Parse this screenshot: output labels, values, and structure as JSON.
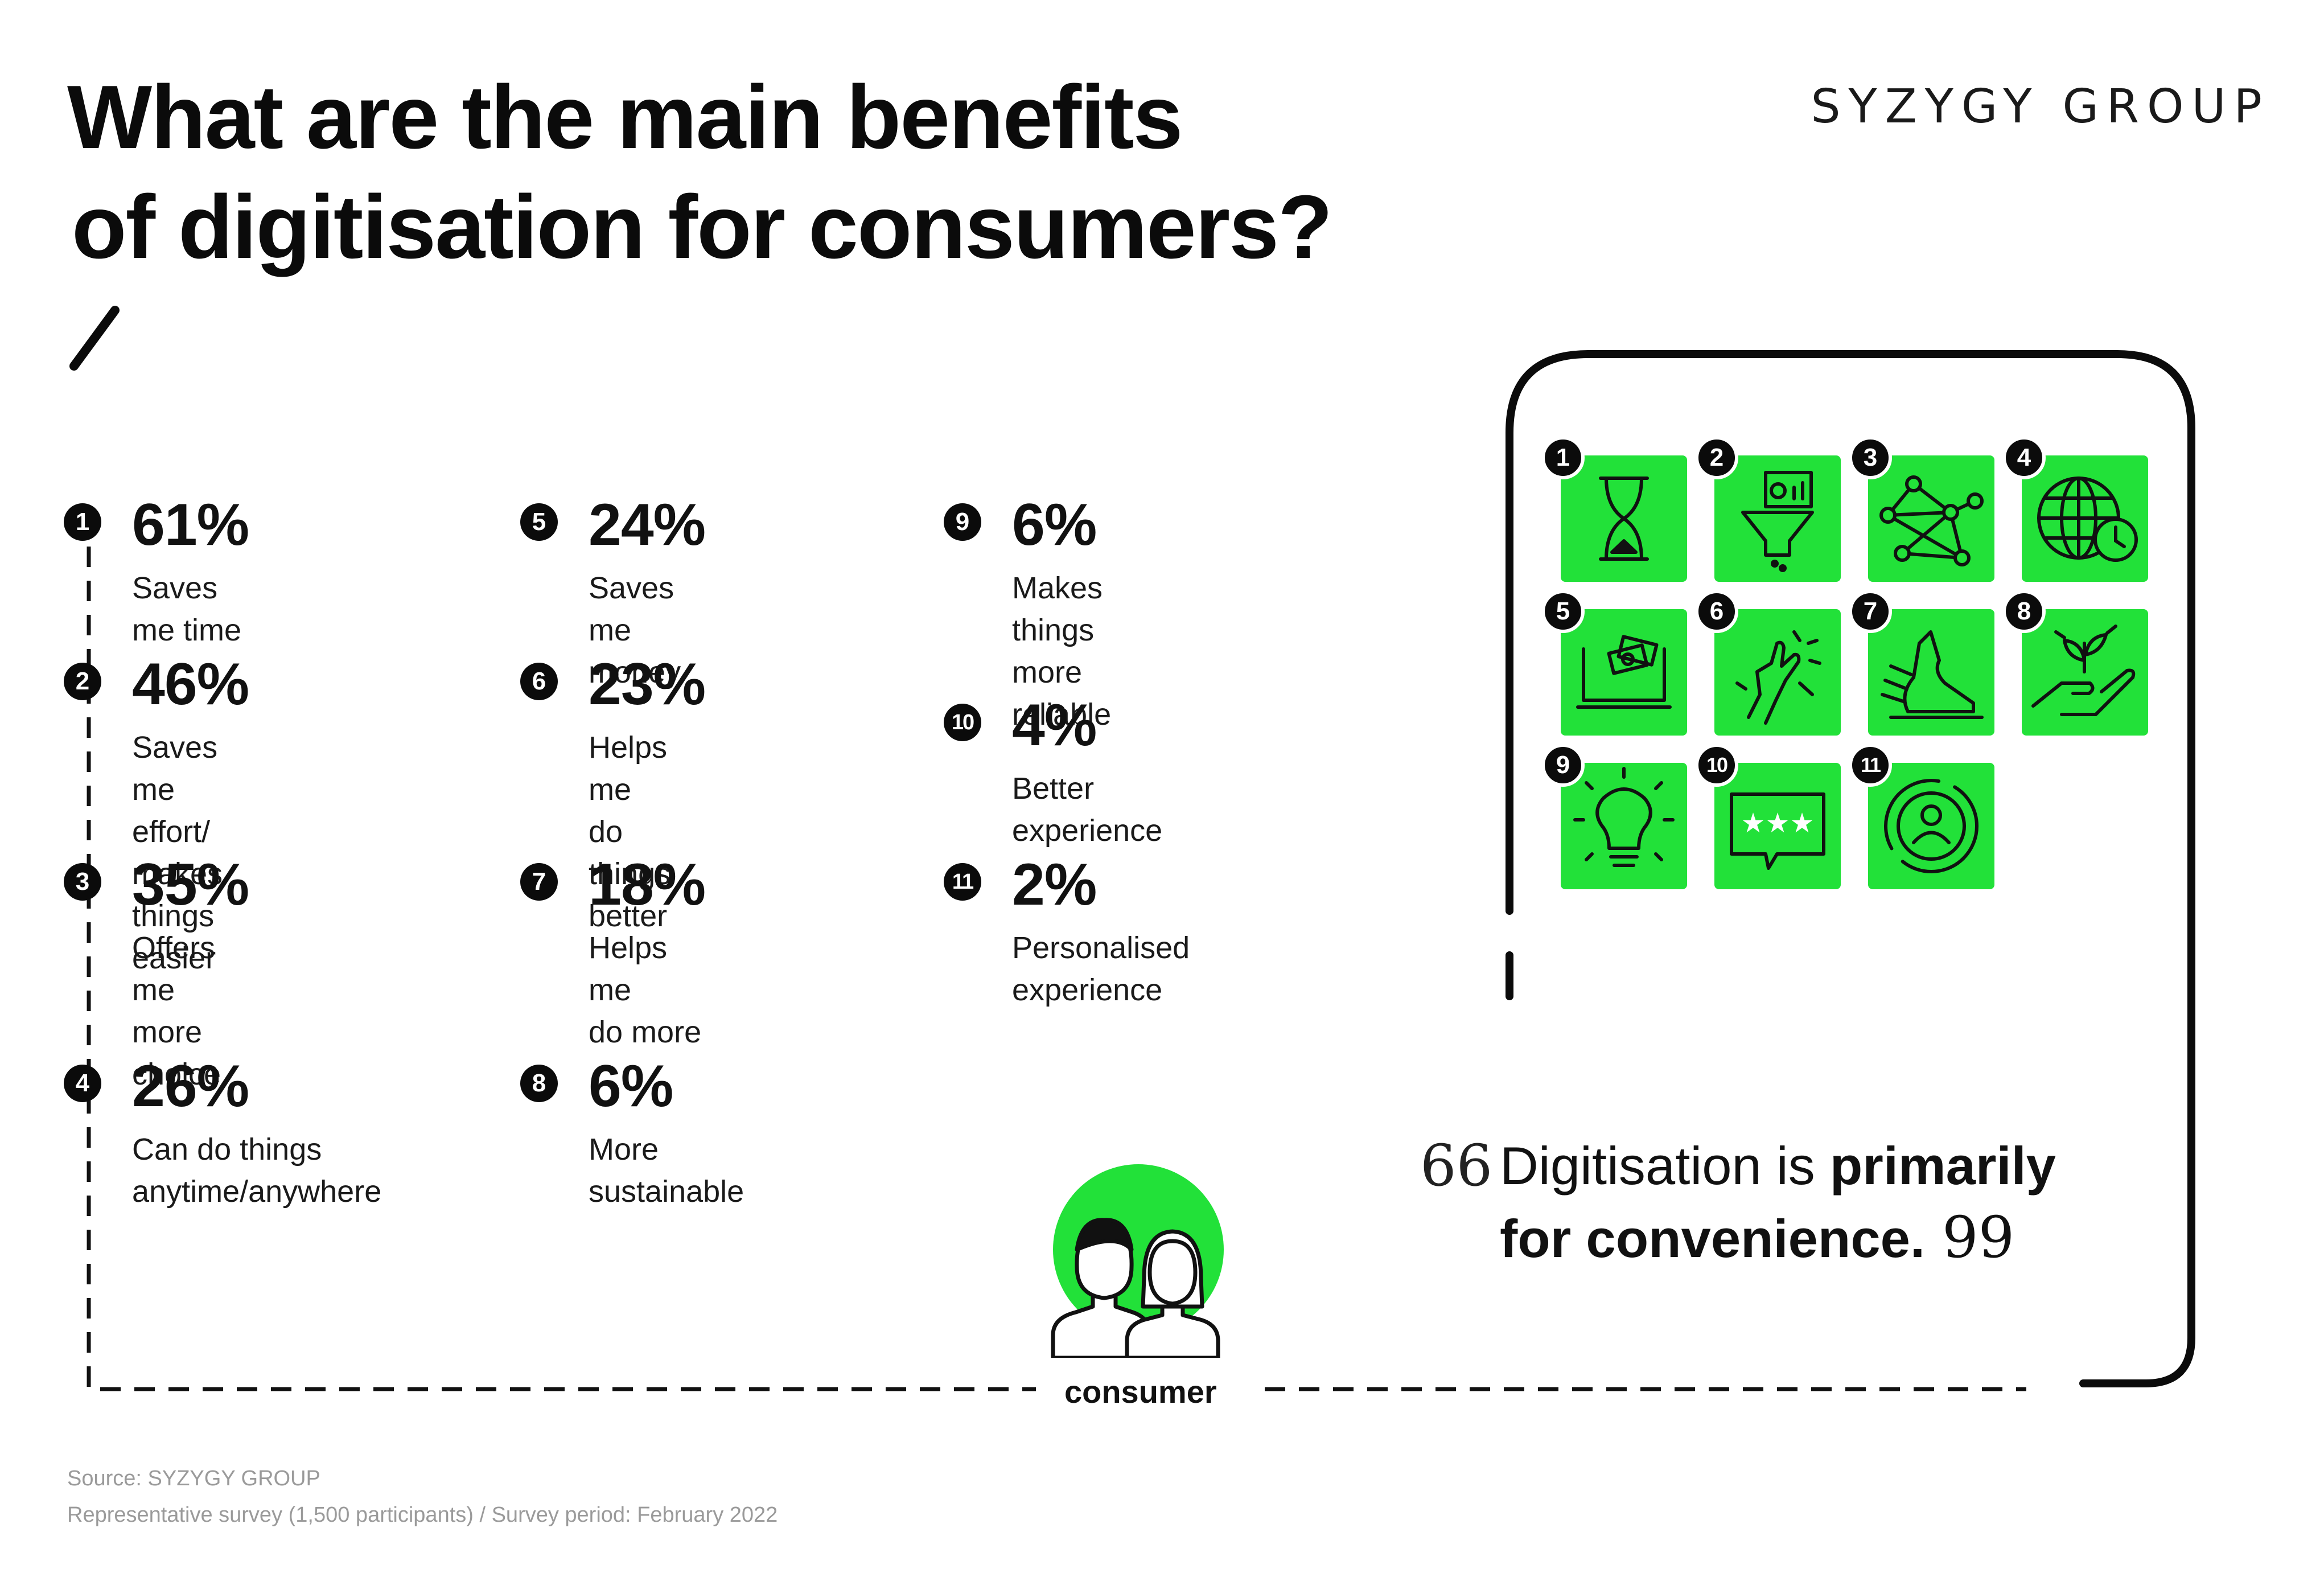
{
  "title": {
    "line1": "What are the main benefits",
    "line2": "of digitisation for consumers?"
  },
  "brand": "SYZYGY GROUP",
  "chart_data": {
    "type": "table",
    "title": "What are the main benefits of digitisation for consumers?",
    "unit": "%",
    "items": [
      {
        "rank": "1",
        "percent": "61%",
        "value": 61,
        "label": "Saves me time"
      },
      {
        "rank": "2",
        "percent": "46%",
        "value": 46,
        "label": "Saves me effort/\nmakes things easier"
      },
      {
        "rank": "3",
        "percent": "35%",
        "value": 35,
        "label": "Offers me\nmore choice"
      },
      {
        "rank": "4",
        "percent": "26%",
        "value": 26,
        "label": "Can do things\nanytime/anywhere"
      },
      {
        "rank": "5",
        "percent": "24%",
        "value": 24,
        "label": "Saves me money"
      },
      {
        "rank": "6",
        "percent": "23%",
        "value": 23,
        "label": "Helps me\ndo things better"
      },
      {
        "rank": "7",
        "percent": "18%",
        "value": 18,
        "label": "Helps me\ndo more"
      },
      {
        "rank": "8",
        "percent": "6%",
        "value": 6,
        "label": "More\nsustainable"
      },
      {
        "rank": "9",
        "percent": "6%",
        "value": 6,
        "label": "Makes things\nmore reliable"
      },
      {
        "rank": "10",
        "percent": "4%",
        "value": 4,
        "label": "Better experience"
      },
      {
        "rank": "11",
        "percent": "2%",
        "value": 2,
        "label": "Personalised\nexperience"
      }
    ]
  },
  "icons": [
    {
      "rank": "1",
      "icon": "hourglass-icon"
    },
    {
      "rank": "2",
      "icon": "funnel-dashboard-icon"
    },
    {
      "rank": "3",
      "icon": "network-nodes-icon"
    },
    {
      "rank": "4",
      "icon": "globe-clock-icon"
    },
    {
      "rank": "5",
      "icon": "laptop-money-icon"
    },
    {
      "rank": "6",
      "icon": "hand-sparkle-icon"
    },
    {
      "rank": "7",
      "icon": "running-shoe-icon"
    },
    {
      "rank": "8",
      "icon": "hand-plant-icon"
    },
    {
      "rank": "9",
      "icon": "lightbulb-icon"
    },
    {
      "rank": "10",
      "icon": "rating-bubble-icon"
    },
    {
      "rank": "11",
      "icon": "user-target-icon"
    }
  ],
  "quote": {
    "open_mark": "66",
    "pre": "Digitisation is ",
    "bold1": "primarily",
    "bold2": "for convenience.",
    "close_mark": "99"
  },
  "consumer_label": "consumer",
  "source": {
    "line1": "Source: SYZYGY GROUP",
    "line2": "Representative survey (1,500 participants) / Survey period: February 2022"
  },
  "colors": {
    "accent": "#22e139",
    "dark": "#0b0b0b",
    "muted": "#9a9a9a"
  }
}
